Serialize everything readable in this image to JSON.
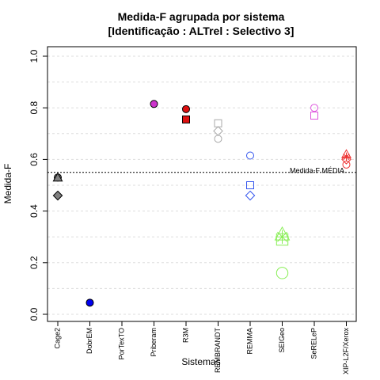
{
  "chart_data": {
    "type": "scatter",
    "title_line1": "Medida-F agrupada por sistema",
    "title_line2": "[Identificação : ALTrel : Selectivo 3]",
    "xlabel": "Sistemas",
    "ylabel": "Medida-F",
    "ylim": [
      0,
      1.0
    ],
    "yticks": [
      "0.0",
      "0.2",
      "0.4",
      "0.6",
      "0.8",
      "1.0"
    ],
    "categories": [
      "Cage2",
      "DobrEM",
      "PorTexTO",
      "Priberam",
      "R3M",
      "REMBRANDT",
      "REMMA",
      "SEIGeo",
      "SeRELeP",
      "XIP-L2F/Xerox"
    ],
    "grid": true,
    "reference_line": {
      "value": 0.55,
      "label": "Medida-F MÉDIA"
    },
    "points": [
      {
        "category": "Cage2",
        "y": 0.53,
        "shape": "circle",
        "fill": "#808080",
        "stroke": "#000000"
      },
      {
        "category": "Cage2",
        "y": 0.53,
        "shape": "triangle",
        "fill": "#808080",
        "stroke": "#000000"
      },
      {
        "category": "Cage2",
        "y": 0.46,
        "shape": "diamond",
        "fill": "#808080",
        "stroke": "#000000"
      },
      {
        "category": "DobrEM",
        "y": 0.045,
        "shape": "circle",
        "fill": "#0000ee",
        "stroke": "#000000"
      },
      {
        "category": "Priberam",
        "y": 0.815,
        "shape": "circle",
        "fill": "#cc33cc",
        "stroke": "#000000"
      },
      {
        "category": "R3M",
        "y": 0.795,
        "shape": "circle",
        "fill": "#dd1111",
        "stroke": "#000000"
      },
      {
        "category": "R3M",
        "y": 0.755,
        "shape": "square",
        "fill": "#dd1111",
        "stroke": "#000000"
      },
      {
        "category": "REMBRANDT",
        "y": 0.74,
        "shape": "square",
        "fill": "none",
        "stroke": "#aaaaaa"
      },
      {
        "category": "REMBRANDT",
        "y": 0.71,
        "shape": "diamond",
        "fill": "none",
        "stroke": "#aaaaaa"
      },
      {
        "category": "REMBRANDT",
        "y": 0.68,
        "shape": "circle",
        "fill": "none",
        "stroke": "#aaaaaa"
      },
      {
        "category": "REMMA",
        "y": 0.615,
        "shape": "circle",
        "fill": "none",
        "stroke": "#3355ee"
      },
      {
        "category": "REMMA",
        "y": 0.5,
        "shape": "square",
        "fill": "none",
        "stroke": "#3355ee"
      },
      {
        "category": "REMMA",
        "y": 0.46,
        "shape": "diamond",
        "fill": "none",
        "stroke": "#3355ee"
      },
      {
        "category": "SEIGeo",
        "y": 0.31,
        "shape": "triangle",
        "fill": "none",
        "stroke": "#88ee55",
        "size": 1.6
      },
      {
        "category": "SEIGeo",
        "y": 0.3,
        "shape": "asterisk",
        "fill": "none",
        "stroke": "#88ee55",
        "size": 1.6
      },
      {
        "category": "SEIGeo",
        "y": 0.29,
        "shape": "square",
        "fill": "none",
        "stroke": "#88ee55",
        "size": 1.6
      },
      {
        "category": "SEIGeo",
        "y": 0.16,
        "shape": "circle",
        "fill": "none",
        "stroke": "#88ee55",
        "size": 1.6
      },
      {
        "category": "SeRELeP",
        "y": 0.8,
        "shape": "circle",
        "fill": "none",
        "stroke": "#dd55dd"
      },
      {
        "category": "SeRELeP",
        "y": 0.77,
        "shape": "square",
        "fill": "none",
        "stroke": "#dd55dd"
      },
      {
        "category": "XIP-L2F/Xerox",
        "y": 0.62,
        "shape": "triangle",
        "fill": "none",
        "stroke": "#ee3333"
      },
      {
        "category": "XIP-L2F/Xerox",
        "y": 0.61,
        "shape": "asterisk",
        "fill": "none",
        "stroke": "#ee3333"
      },
      {
        "category": "XIP-L2F/Xerox",
        "y": 0.6,
        "shape": "diamond",
        "fill": "none",
        "stroke": "#ee3333"
      },
      {
        "category": "XIP-L2F/Xerox",
        "y": 0.58,
        "shape": "circle",
        "fill": "none",
        "stroke": "#ee3333"
      }
    ]
  }
}
